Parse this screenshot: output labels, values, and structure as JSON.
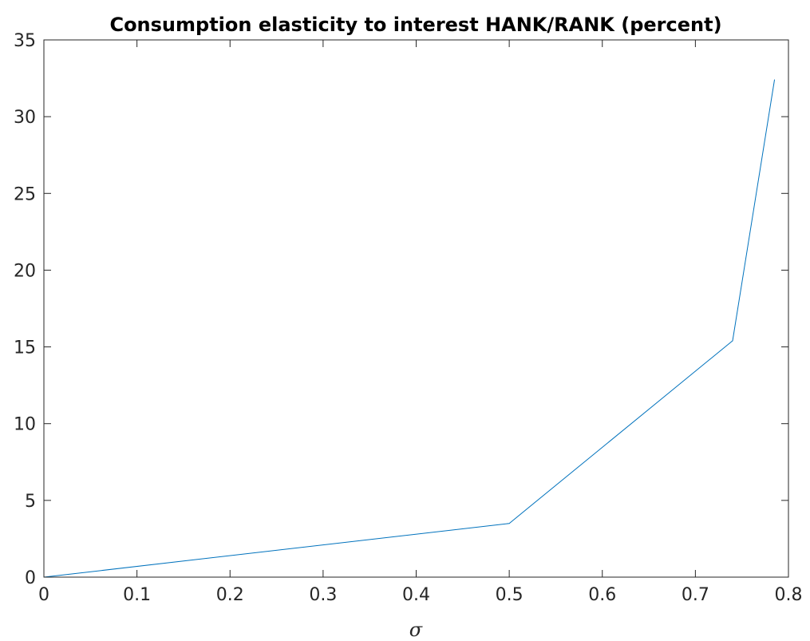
{
  "chart_data": {
    "type": "line",
    "title": "Consumption elasticity to interest HANK/RANK (percent)",
    "xlabel": "σ",
    "ylabel": "",
    "xlim": [
      0,
      0.8
    ],
    "ylim": [
      0,
      35
    ],
    "xticks": [
      0,
      0.1,
      0.2,
      0.3,
      0.4,
      0.5,
      0.6,
      0.7,
      0.8
    ],
    "xtick_labels": [
      "0",
      "0.1",
      "0.2",
      "0.3",
      "0.4",
      "0.5",
      "0.6",
      "0.7",
      "0.8"
    ],
    "yticks": [
      0,
      5,
      10,
      15,
      20,
      25,
      30,
      35
    ],
    "ytick_labels": [
      "0",
      "5",
      "10",
      "15",
      "20",
      "25",
      "30",
      "35"
    ],
    "grid": false,
    "legend": "none",
    "series": [
      {
        "color": "#0072bd",
        "x": [
          0,
          0.5,
          0.74,
          0.785
        ],
        "y": [
          0,
          3.5,
          15.4,
          32.4
        ]
      }
    ]
  }
}
